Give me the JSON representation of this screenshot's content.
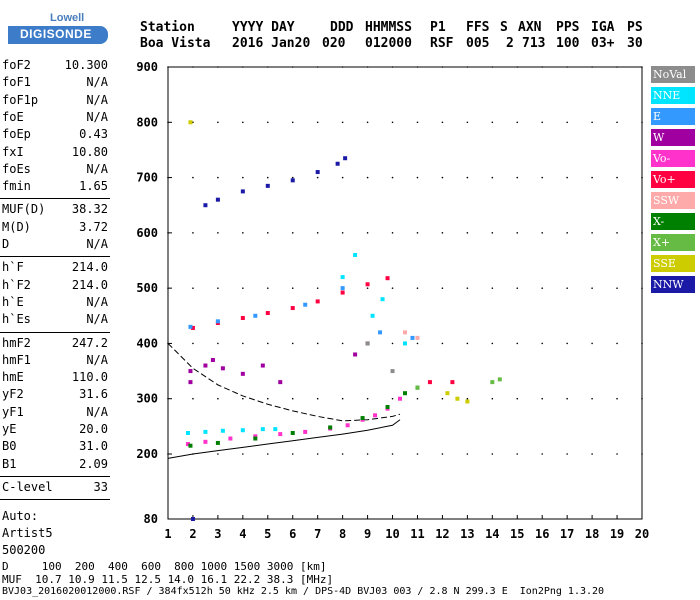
{
  "logo": {
    "top": "Lowell",
    "main": "DIGISONDE"
  },
  "header": {
    "keys": [
      "Station",
      "YYYY DAY",
      "DDD",
      "HHMMSS",
      "P1",
      "FFS",
      "S",
      "AXN",
      "PPS",
      "IGA",
      "PS"
    ],
    "values": [
      "Boa Vista",
      "2016 Jan20",
      "020",
      "012000",
      "RSF",
      "005",
      "2",
      "713",
      "100",
      "03+",
      "30"
    ]
  },
  "params": {
    "group1": [
      {
        "name": "foF2",
        "value": "10.300"
      },
      {
        "name": "foF1",
        "value": "N/A"
      },
      {
        "name": "foF1p",
        "value": "N/A"
      },
      {
        "name": "foE",
        "value": "N/A"
      },
      {
        "name": "foEp",
        "value": "0.43"
      },
      {
        "name": "fxI",
        "value": "10.80"
      },
      {
        "name": "foEs",
        "value": "N/A"
      },
      {
        "name": "fmin",
        "value": "1.65"
      }
    ],
    "group2": [
      {
        "name": "MUF(D)",
        "value": "38.32"
      },
      {
        "name": "M(D)",
        "value": "3.72"
      },
      {
        "name": "D",
        "value": "N/A"
      }
    ],
    "group3": [
      {
        "name": "h`F",
        "value": "214.0"
      },
      {
        "name": "h`F2",
        "value": "214.0"
      },
      {
        "name": "h`E",
        "value": "N/A"
      },
      {
        "name": "h`Es",
        "value": "N/A"
      }
    ],
    "group4": [
      {
        "name": "hmF2",
        "value": "247.2"
      },
      {
        "name": "hmF1",
        "value": "N/A"
      },
      {
        "name": "hmE",
        "value": "110.0"
      },
      {
        "name": "yF2",
        "value": "31.6"
      },
      {
        "name": "yF1",
        "value": "N/A"
      },
      {
        "name": "yE",
        "value": "20.0"
      },
      {
        "name": "B0",
        "value": "31.0"
      },
      {
        "name": "B1",
        "value": "2.09"
      }
    ],
    "group5": [
      {
        "name": "C-level",
        "value": "33"
      }
    ],
    "auto": [
      "Auto:",
      "Artist5",
      "500200"
    ]
  },
  "legend": [
    {
      "label": "NoVal",
      "color": "#8c8c8c"
    },
    {
      "label": "NNE",
      "color": "#00e5ff"
    },
    {
      "label": "E",
      "color": "#3399ff"
    },
    {
      "label": "W",
      "color": "#a0009f"
    },
    {
      "label": "Vo-",
      "color": "#ff33cc"
    },
    {
      "label": "Vo+",
      "color": "#ff0040"
    },
    {
      "label": "SSW",
      "color": "#ffaaaa"
    },
    {
      "label": "X-",
      "color": "#008000"
    },
    {
      "label": "X+",
      "color": "#66bb44"
    },
    {
      "label": "SSE",
      "color": "#cccc00"
    },
    {
      "label": "NNW",
      "color": "#1a1aa6"
    }
  ],
  "chart_data": {
    "type": "scatter",
    "xlabel": "",
    "ylabel": "",
    "x_range": [
      1,
      20
    ],
    "y_range": [
      80,
      900
    ],
    "x_ticks": [
      "1",
      "2",
      "3",
      "4",
      "5",
      "6",
      "7",
      "8",
      "9",
      "10",
      "11",
      "12",
      "13",
      "14",
      "15",
      "16",
      "17",
      "18",
      "19",
      "20"
    ],
    "y_ticks": [
      "80",
      "200",
      "300",
      "400",
      "500",
      "600",
      "700",
      "800",
      "900"
    ],
    "y_tick_values": [
      80,
      200,
      300,
      400,
      500,
      600,
      700,
      800,
      900
    ],
    "series": [
      {
        "name": "Vo-",
        "color": "#ff33cc",
        "points": [
          [
            1.8,
            218
          ],
          [
            2.5,
            222
          ],
          [
            3.5,
            228
          ],
          [
            4.5,
            232
          ],
          [
            5.5,
            236
          ],
          [
            6.5,
            240
          ],
          [
            7.5,
            246
          ],
          [
            8.2,
            252
          ],
          [
            8.8,
            262
          ],
          [
            9.3,
            270
          ],
          [
            9.8,
            282
          ],
          [
            10.3,
            300
          ]
        ]
      },
      {
        "name": "NNE",
        "color": "#00e5ff",
        "points": [
          [
            1.8,
            238
          ],
          [
            2.5,
            240
          ],
          [
            3.2,
            242
          ],
          [
            4.0,
            243
          ],
          [
            4.8,
            245
          ],
          [
            5.3,
            245
          ],
          [
            8.0,
            520
          ],
          [
            8.5,
            560
          ],
          [
            9.2,
            450
          ],
          [
            9.6,
            480
          ],
          [
            10.5,
            400
          ]
        ]
      },
      {
        "name": "W",
        "color": "#a0009f",
        "points": [
          [
            1.9,
            350
          ],
          [
            2.5,
            360
          ],
          [
            3.2,
            355
          ],
          [
            4.0,
            345
          ],
          [
            4.8,
            360
          ],
          [
            5.5,
            330
          ],
          [
            8.5,
            380
          ],
          [
            9.0,
            400
          ],
          [
            1.9,
            330
          ],
          [
            2.8,
            370
          ]
        ]
      },
      {
        "name": "NNW",
        "color": "#1a1aa6",
        "points": [
          [
            2.5,
            650
          ],
          [
            3.0,
            660
          ],
          [
            4.0,
            675
          ],
          [
            5.0,
            685
          ],
          [
            6.0,
            695
          ],
          [
            7.0,
            710
          ],
          [
            7.8,
            725
          ],
          [
            8.1,
            735
          ],
          [
            2.0,
            80
          ]
        ]
      },
      {
        "name": "X-",
        "color": "#008000",
        "points": [
          [
            1.9,
            215
          ],
          [
            3.0,
            220
          ],
          [
            4.5,
            228
          ],
          [
            6.0,
            238
          ],
          [
            7.5,
            248
          ],
          [
            8.8,
            265
          ],
          [
            9.8,
            285
          ],
          [
            10.5,
            310
          ],
          [
            11.0,
            320
          ]
        ]
      },
      {
        "name": "Vo+",
        "color": "#ff0040",
        "points": [
          [
            2.0,
            428
          ],
          [
            3.0,
            437
          ],
          [
            4.0,
            446
          ],
          [
            5.0,
            455
          ],
          [
            6.0,
            464
          ],
          [
            7.0,
            476
          ],
          [
            8.0,
            492
          ],
          [
            9.0,
            507
          ],
          [
            9.8,
            518
          ],
          [
            11.5,
            330
          ],
          [
            12.4,
            330
          ]
        ]
      },
      {
        "name": "E",
        "color": "#3399ff",
        "points": [
          [
            1.9,
            430
          ],
          [
            3.0,
            440
          ],
          [
            4.5,
            450
          ],
          [
            6.5,
            470
          ],
          [
            8.0,
            500
          ],
          [
            9.5,
            420
          ],
          [
            10.8,
            410
          ]
        ]
      },
      {
        "name": "SSE",
        "color": "#cccc00",
        "points": [
          [
            1.9,
            800
          ],
          [
            12.2,
            310
          ],
          [
            12.6,
            300
          ],
          [
            13.0,
            295
          ]
        ]
      },
      {
        "name": "SSW",
        "color": "#ffaaaa",
        "points": [
          [
            10.5,
            420
          ],
          [
            11.0,
            410
          ]
        ]
      },
      {
        "name": "X+",
        "color": "#66bb44",
        "points": [
          [
            11.0,
            320
          ],
          [
            14.0,
            330
          ],
          [
            14.3,
            335
          ]
        ]
      },
      {
        "name": "NoVal",
        "color": "#8c8c8c",
        "points": [
          [
            9.0,
            400
          ],
          [
            10.0,
            350
          ]
        ]
      }
    ],
    "profile_line": [
      [
        1,
        192
      ],
      [
        2,
        200
      ],
      [
        3,
        206
      ],
      [
        4,
        212
      ],
      [
        5,
        218
      ],
      [
        6,
        224
      ],
      [
        7,
        230
      ],
      [
        8,
        236
      ],
      [
        9,
        243
      ],
      [
        10,
        252
      ],
      [
        10.3,
        262
      ]
    ],
    "dashed_line": [
      [
        1,
        400
      ],
      [
        2,
        355
      ],
      [
        3,
        325
      ],
      [
        4,
        305
      ],
      [
        5,
        290
      ],
      [
        6,
        278
      ],
      [
        7,
        268
      ],
      [
        8,
        260
      ],
      [
        9,
        262
      ],
      [
        10,
        268
      ],
      [
        10.3,
        272
      ]
    ]
  },
  "footer": {
    "line1": "D     100  200  400  600  800 1000 1500 3000 [km]",
    "line2": "MUF  10.7 10.9 11.5 12.5 14.0 16.1 22.2 38.3 [MHz]",
    "line3": "BVJ03_2016020012000.RSF / 384fx512h 50 kHz 2.5 km / DPS-4D BVJ03 003 / 2.8 N 299.3 E  Ion2Png 1.3.20"
  }
}
